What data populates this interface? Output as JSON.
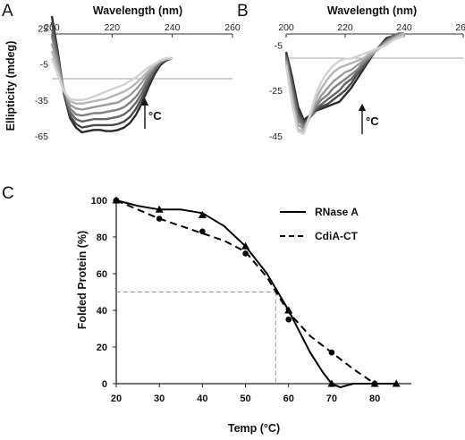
{
  "panels": {
    "a_label": "A",
    "b_label": "B",
    "c_label": "C"
  },
  "chart_data": [
    {
      "type": "line",
      "panel": "A",
      "title": "",
      "xlabel": "Wavelength (nm)",
      "ylabel": "Ellipticity (mdeg)",
      "xlim": [
        200,
        260
      ],
      "ylim": [
        -65,
        35
      ],
      "x_ticks": [
        "200",
        "220",
        "240",
        "260"
      ],
      "y_ticks": [
        "25",
        "-5",
        "-35",
        "-65"
      ],
      "annotation": "°C",
      "x": [
        200,
        202,
        204,
        206,
        208,
        210,
        212,
        214,
        216,
        218,
        220,
        222,
        224,
        226,
        228,
        230,
        232,
        234,
        236,
        238,
        240
      ],
      "series": [
        {
          "values": [
            35,
            5,
            -30,
            -50,
            -58,
            -62,
            -61,
            -60,
            -60,
            -61,
            -61,
            -60,
            -58,
            -54,
            -47,
            -37,
            -25,
            -14,
            -6,
            -2,
            0
          ],
          "color": "#2b2b2b"
        },
        {
          "values": [
            30,
            3,
            -29,
            -48,
            -55,
            -58,
            -57,
            -56,
            -56,
            -56,
            -56,
            -55,
            -53,
            -49,
            -42,
            -33,
            -22,
            -12,
            -5,
            -2,
            0
          ],
          "color": "#4a4a4a"
        },
        {
          "values": [
            24,
            0,
            -28,
            -45,
            -51,
            -53,
            -52,
            -51,
            -51,
            -51,
            -50,
            -49,
            -47,
            -43,
            -37,
            -29,
            -19,
            -10,
            -4,
            -1,
            0
          ],
          "color": "#666666"
        },
        {
          "values": [
            18,
            -3,
            -27,
            -42,
            -47,
            -48,
            -47,
            -46,
            -46,
            -45,
            -44,
            -43,
            -41,
            -37,
            -32,
            -25,
            -16,
            -8,
            -3,
            -1,
            0
          ],
          "color": "#808080"
        },
        {
          "values": [
            12,
            -6,
            -27,
            -39,
            -42,
            -43,
            -42,
            -41,
            -40,
            -39,
            -38,
            -37,
            -34,
            -31,
            -26,
            -20,
            -13,
            -7,
            -3,
            -1,
            0
          ],
          "color": "#9a9a9a"
        },
        {
          "values": [
            6,
            -10,
            -27,
            -36,
            -38,
            -38,
            -37,
            -36,
            -35,
            -34,
            -32,
            -30,
            -28,
            -25,
            -21,
            -16,
            -11,
            -6,
            -2,
            -1,
            0
          ],
          "color": "#b5b5b5"
        },
        {
          "values": [
            0,
            -14,
            -28,
            -34,
            -35,
            -35,
            -34,
            -32,
            -30,
            -28,
            -26,
            -24,
            -22,
            -19,
            -16,
            -12,
            -8,
            -5,
            -2,
            0,
            0
          ],
          "color": "#d2d2d2"
        }
      ]
    },
    {
      "type": "line",
      "panel": "B",
      "title": "",
      "xlabel": "Wavelength (nm)",
      "ylabel": "Ellipticity (mdeg)",
      "xlim": [
        200,
        260
      ],
      "ylim": [
        -45,
        3
      ],
      "x_ticks": [
        "200",
        "220",
        "240",
        "260"
      ],
      "y_ticks": [
        "-5",
        "-25",
        "-45"
      ],
      "annotation": "°C",
      "x": [
        200,
        202,
        204,
        206,
        208,
        210,
        212,
        214,
        216,
        218,
        220,
        222,
        224,
        226,
        228,
        230,
        232,
        234,
        236,
        238,
        240
      ],
      "series": [
        {
          "values": [
            -8,
            -19,
            -32,
            -38,
            -36,
            -34,
            -33,
            -32,
            -31,
            -30,
            -27,
            -24,
            -20,
            -16,
            -12,
            -8,
            -5,
            -2,
            -1,
            0,
            0
          ],
          "color": "#2b2b2b"
        },
        {
          "values": [
            -9,
            -21,
            -34,
            -39,
            -37,
            -34,
            -32,
            -31,
            -29,
            -27,
            -25,
            -22,
            -18,
            -15,
            -11,
            -8,
            -5,
            -3,
            -1,
            0,
            0
          ],
          "color": "#4a4a4a"
        },
        {
          "values": [
            -10,
            -23,
            -36,
            -40,
            -37,
            -33,
            -31,
            -29,
            -27,
            -25,
            -22,
            -20,
            -17,
            -14,
            -11,
            -8,
            -5,
            -3,
            -1,
            0,
            0
          ],
          "color": "#666666"
        },
        {
          "values": [
            -11,
            -25,
            -38,
            -41,
            -37,
            -32,
            -29,
            -27,
            -24,
            -22,
            -20,
            -18,
            -16,
            -13,
            -11,
            -8,
            -6,
            -3,
            -2,
            0,
            0
          ],
          "color": "#808080"
        },
        {
          "values": [
            -12,
            -27,
            -40,
            -42,
            -37,
            -31,
            -27,
            -24,
            -21,
            -19,
            -17,
            -16,
            -14,
            -12,
            -10,
            -8,
            -6,
            -4,
            -2,
            -1,
            0
          ],
          "color": "#9a9a9a"
        },
        {
          "values": [
            -13,
            -29,
            -42,
            -43,
            -36,
            -29,
            -24,
            -20,
            -17,
            -15,
            -14,
            -13,
            -12,
            -11,
            -9,
            -8,
            -6,
            -4,
            -3,
            -1,
            0
          ],
          "color": "#b5b5b5"
        },
        {
          "values": [
            -14,
            -31,
            -43,
            -44,
            -36,
            -27,
            -21,
            -17,
            -14,
            -12,
            -11,
            -11,
            -10,
            -9,
            -8,
            -7,
            -6,
            -5,
            -3,
            -2,
            -1
          ],
          "color": "#d2d2d2"
        }
      ]
    },
    {
      "type": "line",
      "panel": "C",
      "title": "",
      "xlabel": "Temp (°C)",
      "ylabel": "Folded Protein (%)",
      "xlim": [
        20,
        86
      ],
      "ylim": [
        0,
        100
      ],
      "x_ticks": [
        "20",
        "30",
        "40",
        "50",
        "60",
        "70",
        "80"
      ],
      "y_ticks": [
        "0",
        "20",
        "40",
        "60",
        "80",
        "100"
      ],
      "grid": false,
      "legend_position": "top-right",
      "midpoint_guide": {
        "x": 57,
        "y": 50
      },
      "series": [
        {
          "name": "RNase A",
          "style": "solid",
          "marker": "triangle",
          "points_x": [
            20,
            30,
            40,
            50,
            60,
            70,
            80,
            85
          ],
          "points_y": [
            100,
            95,
            92,
            75,
            40,
            0,
            0,
            0
          ],
          "curve_x": [
            20,
            25,
            30,
            35,
            40,
            45,
            50,
            55,
            60,
            65,
            68,
            70,
            72,
            75,
            80,
            85
          ],
          "curve_y": [
            100,
            97,
            95,
            95,
            93,
            86,
            75,
            60,
            40,
            17,
            6,
            0,
            -2,
            0,
            0,
            0
          ]
        },
        {
          "name": "CdiA-CT",
          "style": "dashed",
          "marker": "circle",
          "points_x": [
            20,
            30,
            40,
            50,
            60,
            70,
            80
          ],
          "points_y": [
            100,
            90,
            83,
            71,
            35,
            17,
            0
          ],
          "curve_x": [
            20,
            25,
            30,
            35,
            40,
            45,
            50,
            55,
            60,
            65,
            70,
            75,
            80
          ],
          "curve_y": [
            100,
            95,
            90,
            86,
            82,
            78,
            72,
            58,
            39,
            26,
            17,
            8,
            0
          ]
        }
      ]
    }
  ]
}
